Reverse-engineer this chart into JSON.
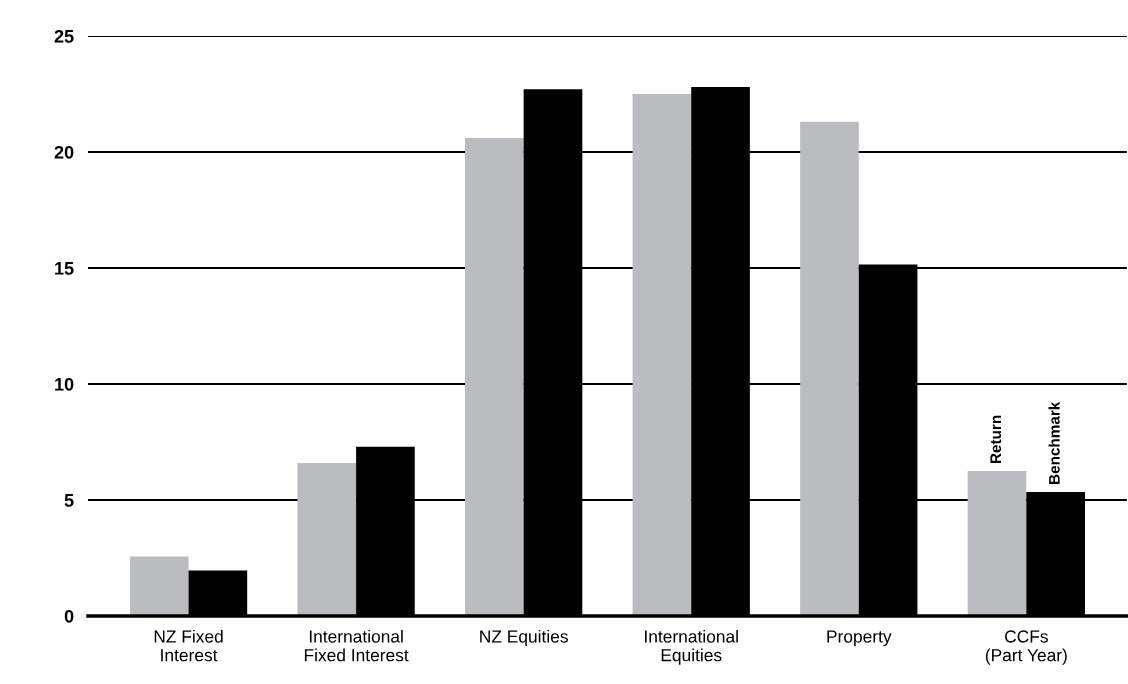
{
  "chart_data": {
    "type": "bar",
    "categories": [
      "NZ Fixed\nInterest",
      "International\nFixed Interest",
      "NZ Equities",
      "International\nEquities",
      "Property",
      "CCFs\n(Part Year)"
    ],
    "series": [
      {
        "name": "Return",
        "color": "#bbbcbf",
        "values": [
          2.57,
          6.6,
          20.6,
          22.5,
          21.3,
          6.25
        ]
      },
      {
        "name": "Benchmark",
        "color": "#000000",
        "values": [
          1.96,
          7.3,
          22.7,
          22.8,
          15.15,
          5.35
        ]
      }
    ],
    "ylim": [
      0,
      25
    ],
    "yticks": [
      0,
      5,
      10,
      15,
      20,
      25
    ],
    "grid": "y",
    "legend": false
  }
}
